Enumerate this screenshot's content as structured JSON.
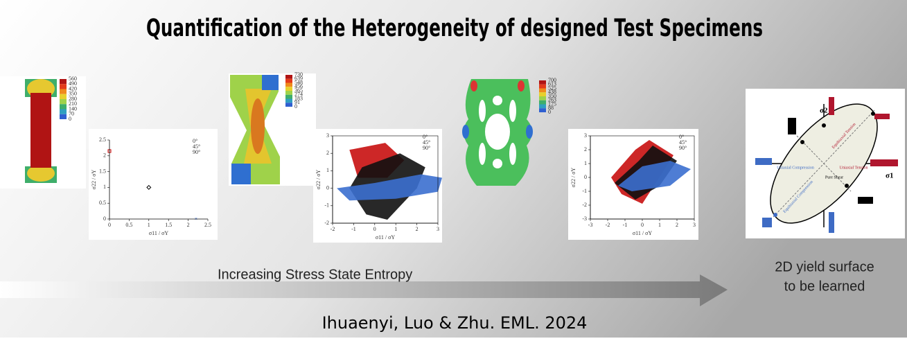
{
  "title": "Quantification of the Heterogeneity of designed Test Specimens",
  "colorbars": [
    {
      "labels": [
        560,
        490,
        420,
        350,
        280,
        210,
        140,
        70,
        0
      ]
    },
    {
      "labels": [
        730,
        639,
        548,
        456,
        365,
        274,
        183,
        91,
        0
      ]
    },
    {
      "labels": [
        700,
        613,
        525,
        438,
        350,
        263,
        175,
        88,
        0
      ]
    }
  ],
  "plots": [
    {
      "x_label": "σ11 / σY",
      "y_label": "σ22 / σY",
      "xticks": [
        0,
        0.5,
        1,
        1.5,
        2,
        2.5
      ],
      "yticks": [
        0,
        0.5,
        1,
        1.5,
        2,
        2.5
      ],
      "legend": [
        "0°",
        "45°",
        "90°"
      ]
    },
    {
      "x_label": "σ11 / σY",
      "y_label": "σ22 / σY",
      "xticks": [
        -2,
        -1,
        0,
        1,
        2,
        3
      ],
      "yticks": [
        -2,
        -1,
        0,
        1,
        2,
        3
      ],
      "legend": [
        "0°",
        "45°",
        "90°"
      ]
    },
    {
      "x_label": "σ11 / σY",
      "y_label": "σ22 / σY",
      "xticks": [
        -3,
        -2,
        -1,
        0,
        1,
        2,
        3
      ],
      "yticks": [
        -3,
        -2,
        -1,
        0,
        1,
        2,
        3
      ],
      "legend": [
        "0°",
        "45°",
        "90°"
      ]
    }
  ],
  "yield_surface": {
    "x_axis": "σ1",
    "y_axis": "σ2",
    "regions": [
      "Equibiaxial Tension",
      "Uniaxial Tension",
      "Uniaxial Compression",
      "Pure Shear",
      "Equibiaxial Compression"
    ]
  },
  "arrow_label": "Increasing Stress State Entropy",
  "yield_caption": [
    "2D yield surface",
    "to be learned"
  ],
  "citation": "Ihuaenyi, Luo & Zhu. EML. 2024"
}
